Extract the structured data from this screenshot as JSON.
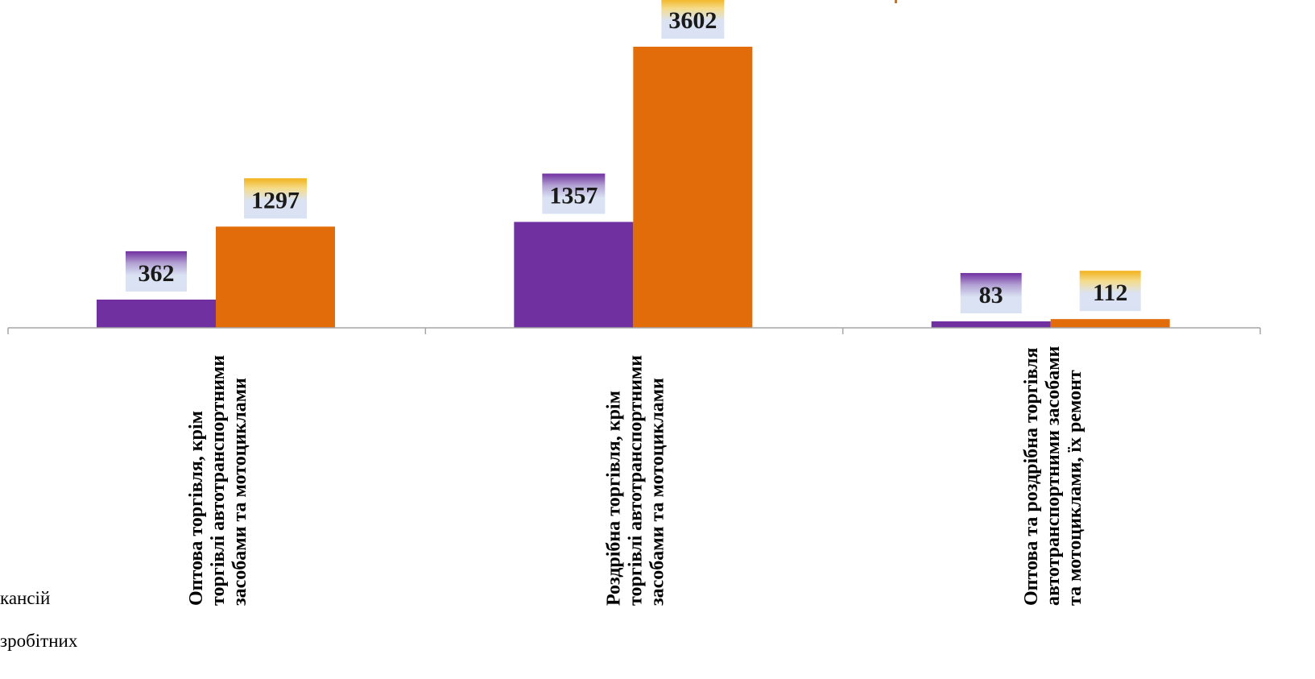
{
  "chart_data": {
    "type": "bar",
    "categories": [
      [
        "Оптова торгівля, крім",
        "торгівлі автотранспортними",
        "засобами  та мотоциклами"
      ],
      [
        "Роздрібна  торгівля, крім",
        "торгівлі автотранспортними",
        "засобами  та мотоциклами"
      ],
      [
        "Оптова та роздрібна торгівля",
        "автотранспортними засобами",
        "та мотоциклами, їх ремонт"
      ]
    ],
    "series": [
      {
        "name": "...кансій",
        "color": "#7030a0",
        "values": [
          362,
          1357,
          83
        ]
      },
      {
        "name": "...зробітних",
        "color": "#e36c0a",
        "values": [
          1297,
          3602,
          112
        ]
      }
    ],
    "ylim": [
      0,
      3602
    ],
    "grid": false,
    "title": "",
    "xlabel": "",
    "ylabel": ""
  },
  "legend": {
    "items": [
      "кансій",
      "зробітних"
    ]
  }
}
